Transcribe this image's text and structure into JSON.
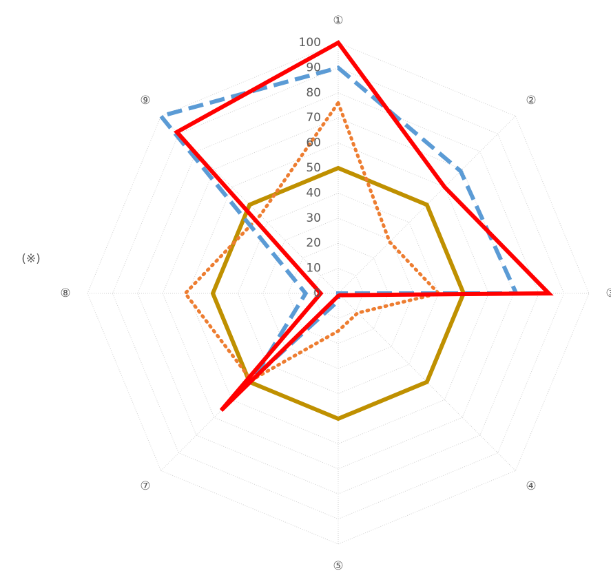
{
  "chart_data": {
    "type": "radar",
    "note": "(※)",
    "categories": [
      "①",
      "②",
      "③",
      "④",
      "⑤",
      "⑦",
      "⑧",
      "⑨"
    ],
    "ylim": [
      0,
      100
    ],
    "yticks": [
      0,
      10,
      20,
      30,
      40,
      50,
      60,
      70,
      80,
      90,
      100
    ],
    "grid": true,
    "series": [
      {
        "color": "#bf9000",
        "line_style": "solid",
        "values": [
          50,
          50,
          50,
          50,
          50,
          50,
          50,
          50
        ]
      },
      {
        "color": "#ed7d31",
        "line_style": "dotted",
        "values": [
          76,
          29,
          40,
          11,
          15,
          49,
          61,
          44
        ]
      },
      {
        "color": "#5b9bd5",
        "line_style": "dashed",
        "values": [
          90,
          69,
          71,
          0,
          3,
          47,
          13,
          100
        ]
      },
      {
        "color": "#ff0000",
        "line_style": "solid",
        "values": [
          100,
          60,
          84,
          1,
          1,
          66,
          7,
          91
        ]
      }
    ]
  }
}
